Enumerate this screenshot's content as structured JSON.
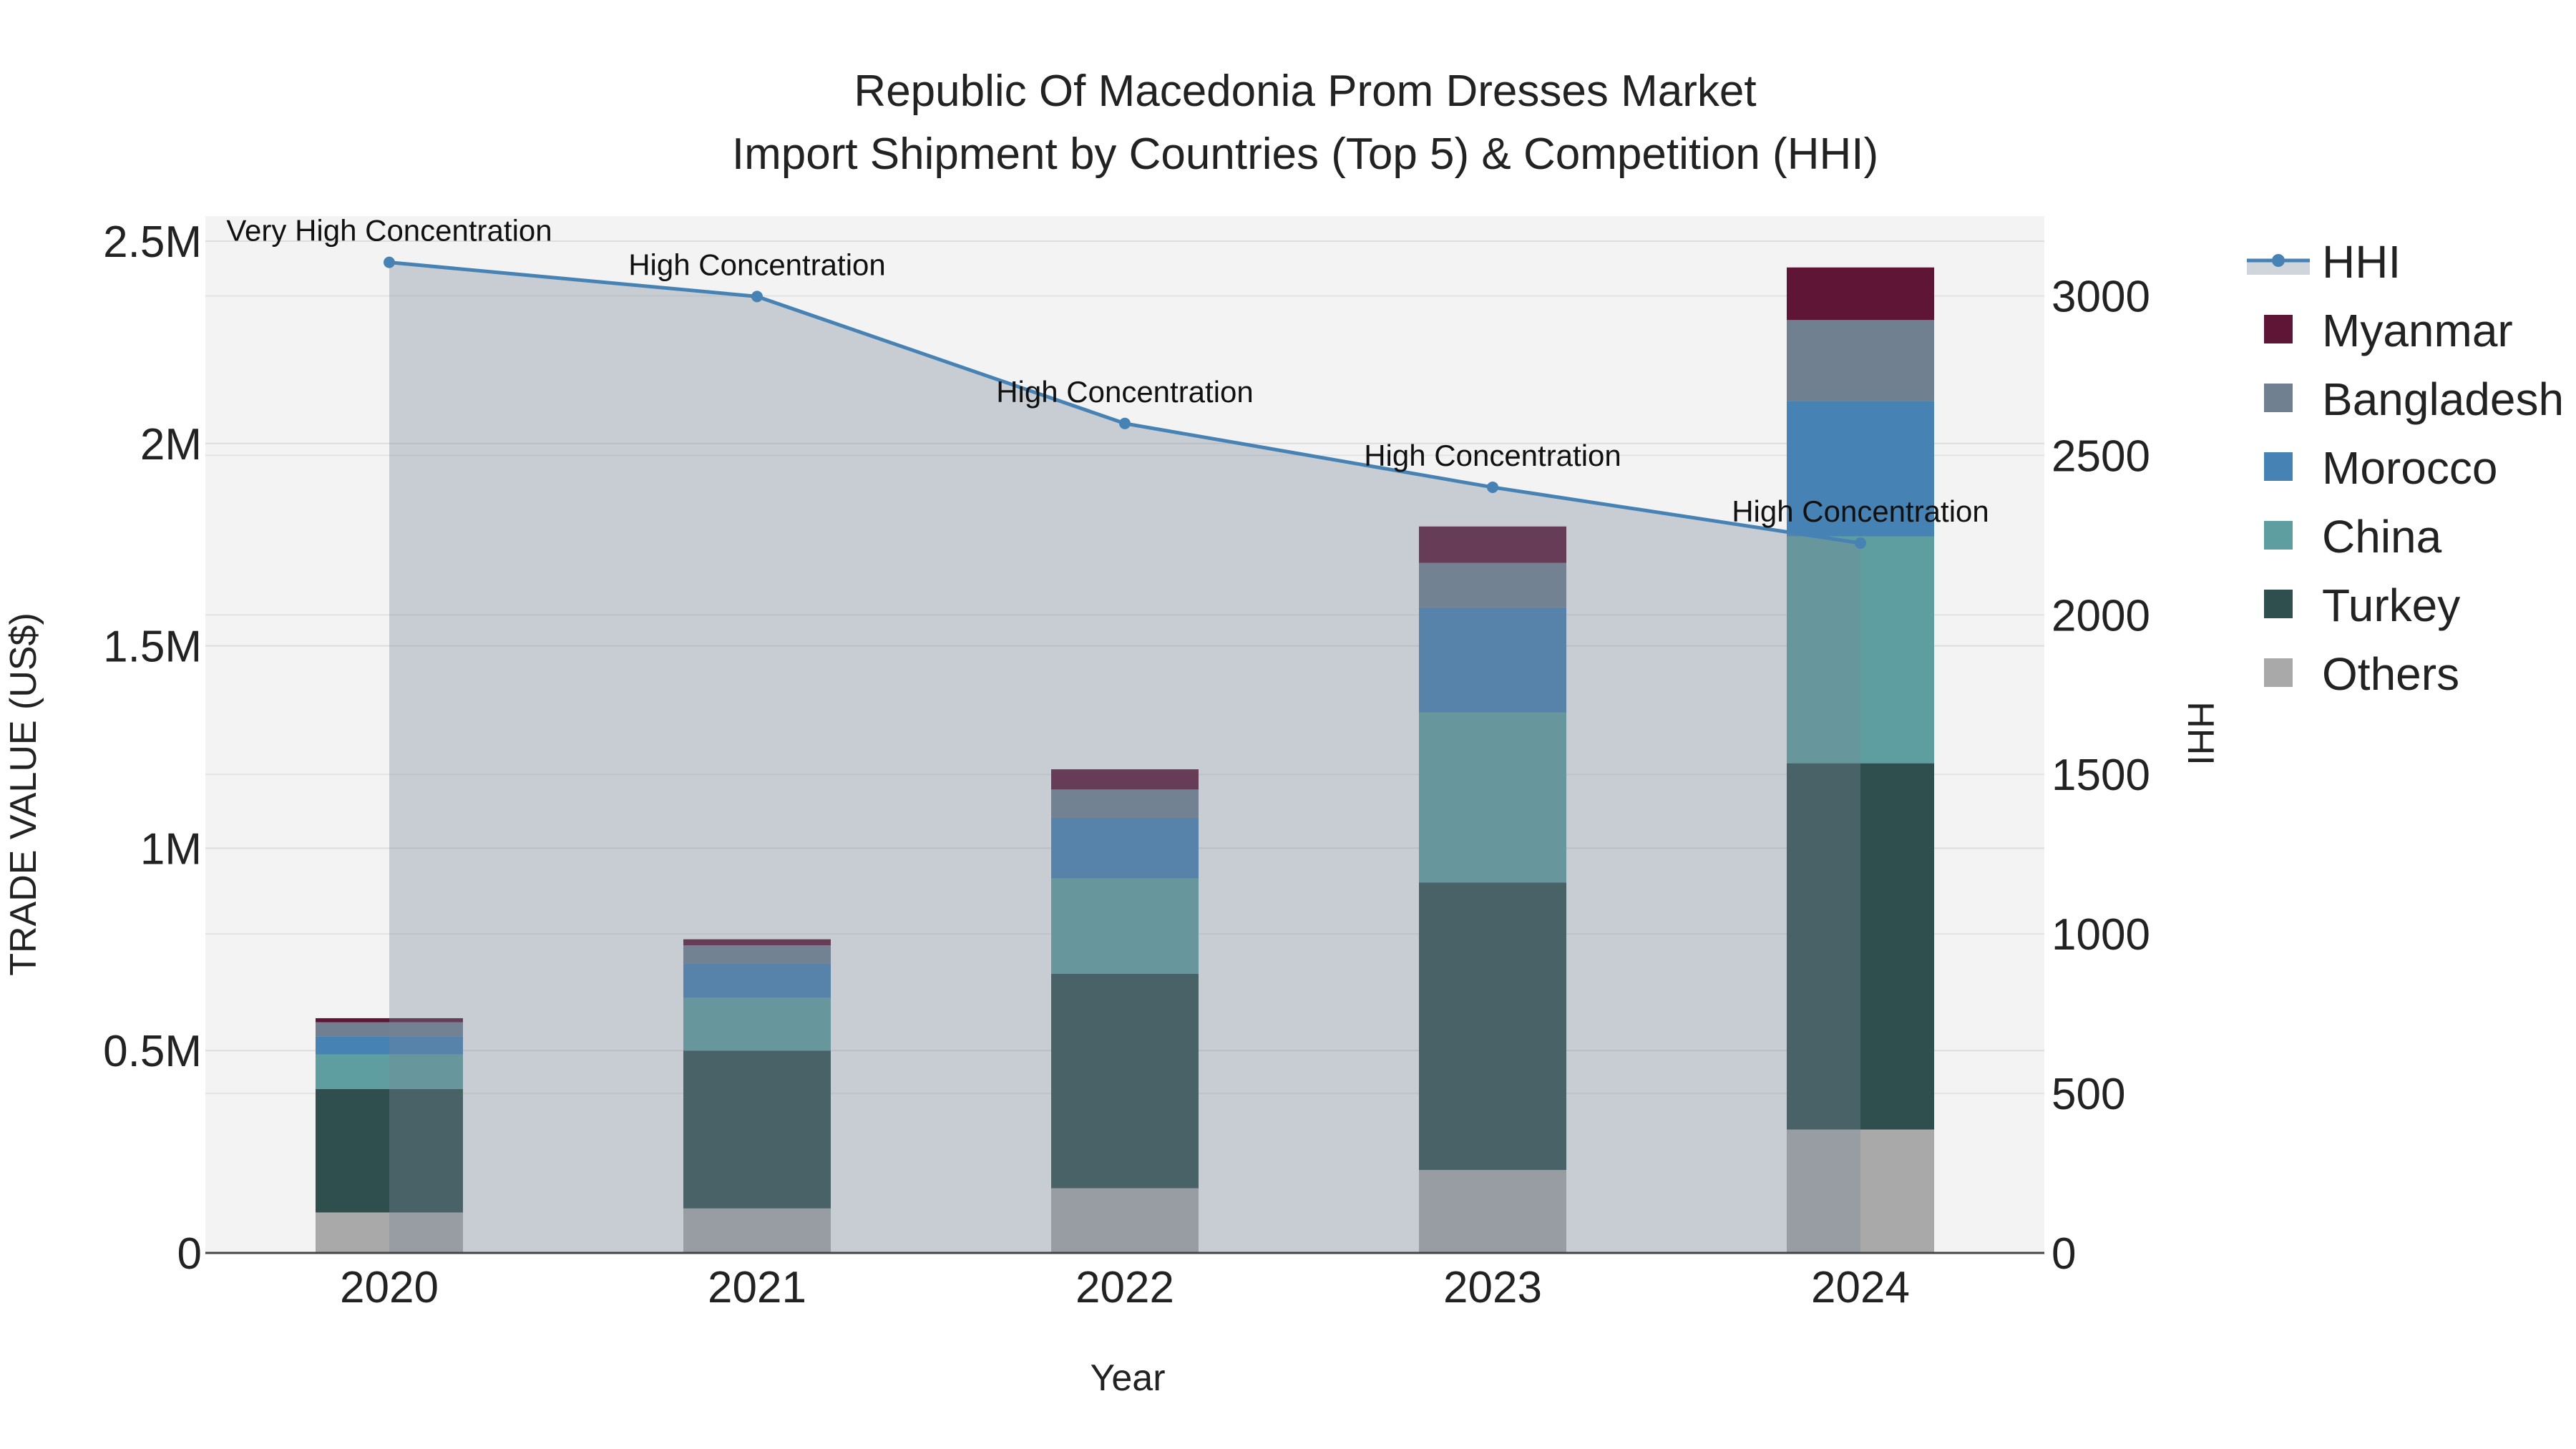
{
  "chart_data": {
    "type": "bar",
    "stacked": true,
    "title": "Republic Of Macedonia Prom Dresses Market",
    "subtitle": "Import Shipment by Countries (Top 5) & Competition (HHI)",
    "xlabel": "Year",
    "ylabel": "TRADE VALUE (US$)",
    "y2label": "HHI",
    "categories": [
      "2020",
      "2021",
      "2022",
      "2023",
      "2024"
    ],
    "ylim": [
      0,
      2500000
    ],
    "y2lim": [
      0,
      3250
    ],
    "yticks": [
      {
        "value": 0,
        "label": "0"
      },
      {
        "value": 500000,
        "label": "0.5M"
      },
      {
        "value": 1000000,
        "label": "1M"
      },
      {
        "value": 1500000,
        "label": "1.5M"
      },
      {
        "value": 2000000,
        "label": "2M"
      },
      {
        "value": 2500000,
        "label": "2.5M"
      }
    ],
    "y2ticks": [
      {
        "value": 0,
        "label": "0"
      },
      {
        "value": 500,
        "label": "500"
      },
      {
        "value": 1000,
        "label": "1000"
      },
      {
        "value": 1500,
        "label": "1500"
      },
      {
        "value": 2000,
        "label": "2000"
      },
      {
        "value": 2500,
        "label": "2500"
      },
      {
        "value": 3000,
        "label": "3000"
      }
    ],
    "series": [
      {
        "name": "Others",
        "color": "#a9a9a9",
        "values": [
          100000,
          110000,
          160000,
          205000,
          305000
        ]
      },
      {
        "name": "Turkey",
        "color": "#2f4f4f",
        "values": [
          305000,
          390000,
          530000,
          710000,
          905000
        ]
      },
      {
        "name": "China",
        "color": "#5f9ea0",
        "values": [
          85000,
          130000,
          235000,
          420000,
          560000
        ]
      },
      {
        "name": "Morocco",
        "color": "#4682b4",
        "values": [
          45000,
          85000,
          150000,
          260000,
          335000
        ]
      },
      {
        "name": "Bangladesh",
        "color": "#708090",
        "values": [
          35000,
          45000,
          70000,
          110000,
          200000
        ]
      },
      {
        "name": "Myanmar",
        "color": "#5f1535",
        "values": [
          10000,
          15000,
          50000,
          90000,
          130000
        ]
      }
    ],
    "hhi": {
      "name": "HHI",
      "color": "#4682b4",
      "values": [
        3105,
        2998,
        2600,
        2400,
        2225
      ],
      "annotations": [
        "Very High Concentration",
        "High Concentration",
        "High Concentration",
        "High Concentration",
        "High Concentration"
      ]
    },
    "legend_order": [
      "HHI",
      "Myanmar",
      "Bangladesh",
      "Morocco",
      "China",
      "Turkey",
      "Others"
    ]
  }
}
